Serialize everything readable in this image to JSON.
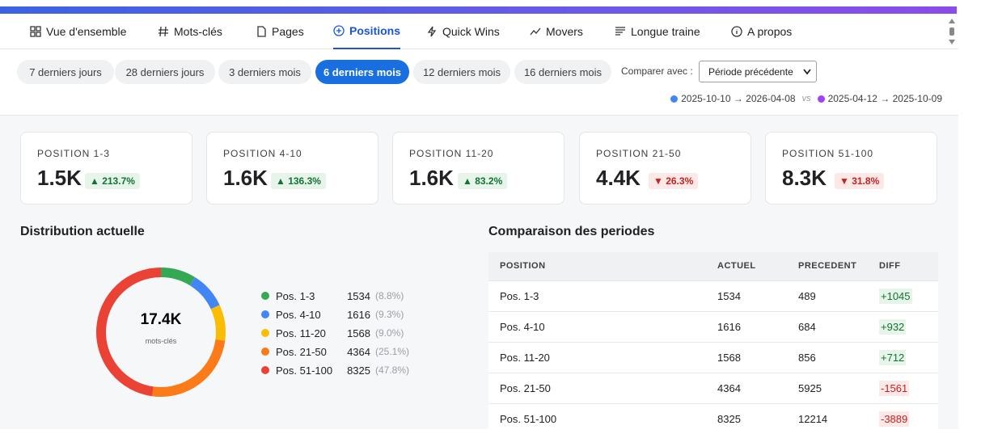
{
  "tabs": [
    "Vue d'ensemble",
    "Mots-clés",
    "Pages",
    "Positions",
    "Quick Wins",
    "Movers",
    "Longue traine",
    "A propos"
  ],
  "active_tab": 3,
  "periods": [
    "7 derniers jours",
    "28 derniers jours",
    "3 derniers mois",
    "6 derniers mois",
    "12 derniers mois",
    "16 derniers mois"
  ],
  "active_period": 3,
  "compare_label": "Comparer avec :",
  "compare_select": "Période précédente",
  "range_current": "2025-10-10 → 2026-04-08",
  "vs": "vs",
  "range_previous": "2025-04-12 → 2025-10-09",
  "cards": [
    {
      "label": "POSITION 1-3",
      "value": "1.5K",
      "change": "▲ 213.7%",
      "trend": "up"
    },
    {
      "label": "POSITION 4-10",
      "value": "1.6K",
      "change": "▲ 136.3%",
      "trend": "up"
    },
    {
      "label": "POSITION 11-20",
      "value": "1.6K",
      "change": "▲ 83.2%",
      "trend": "up"
    },
    {
      "label": "POSITION 21-50",
      "value": "4.4K",
      "change": "▼ 26.3%",
      "trend": "down"
    },
    {
      "label": "POSITION 51-100",
      "value": "8.3K",
      "change": "▼ 31.8%",
      "trend": "down"
    }
  ],
  "distribution": {
    "title": "Distribution actuelle",
    "total": "17.4K",
    "total_caption": "mots-clés",
    "items": [
      {
        "label": "Pos. 1-3",
        "value": 1534,
        "share": "(8.8%)",
        "color": "#34a853"
      },
      {
        "label": "Pos. 4-10",
        "value": 1616,
        "share": "(9.3%)",
        "color": "#4285f4"
      },
      {
        "label": "Pos. 11-20",
        "value": 1568,
        "share": "(9.0%)",
        "color": "#fbbc04"
      },
      {
        "label": "Pos. 21-50",
        "value": 4364,
        "share": "(25.1%)",
        "color": "#fa7b17"
      },
      {
        "label": "Pos. 51-100",
        "value": 8325,
        "share": "(47.8%)",
        "color": "#ea4335"
      }
    ]
  },
  "comparison": {
    "title": "Comparaison des periodes",
    "columns": [
      "POSITION",
      "ACTUEL",
      "PRECEDENT",
      "DIFF"
    ],
    "rows": [
      [
        "Pos. 1-3",
        1534,
        489,
        "+1045"
      ],
      [
        "Pos. 4-10",
        1616,
        684,
        "+932"
      ],
      [
        "Pos. 11-20",
        1568,
        856,
        "+712"
      ],
      [
        "Pos. 21-50",
        4364,
        5925,
        "-1561"
      ],
      [
        "Pos. 51-100",
        8325,
        12214,
        "-3889"
      ]
    ]
  }
}
